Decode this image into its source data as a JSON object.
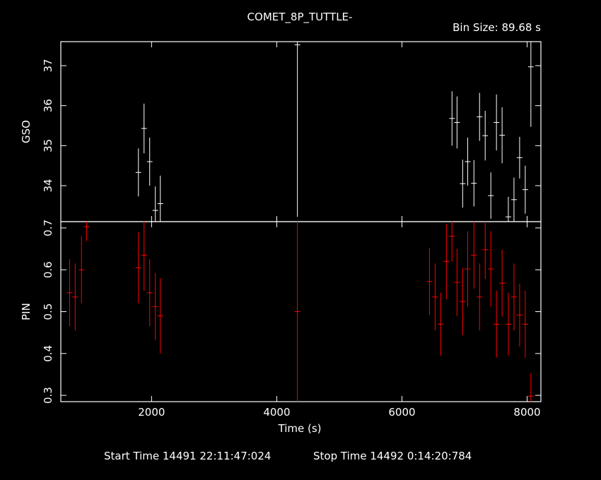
{
  "title": "COMET_8P_TUTTLE-",
  "bin_size": "Bin Size: 89.68 s",
  "start_label": "Start Time 14491 22:11:47:024",
  "stop_label": "Stop Time 14492  0:14:20:784",
  "colors": {
    "background": "#000000",
    "gso": "#ffffff",
    "pin": "#ff0000",
    "axis": "#ffffff"
  },
  "chart_data": [
    {
      "type": "scatter",
      "name": "GSO",
      "ylabel": "GSO",
      "xlabel": "",
      "xlim": [
        550,
        8220
      ],
      "ylim": [
        33.1,
        37.6
      ],
      "xticks": [
        2000,
        4000,
        6000,
        8000
      ],
      "yticks": [
        34,
        35,
        36,
        37
      ],
      "ytick_labels": [
        "34",
        "35",
        "36",
        "37"
      ],
      "x": [
        1790,
        1880,
        1970,
        2060,
        2140,
        4330,
        6800,
        6880,
        6970,
        7050,
        7150,
        7240,
        7330,
        7420,
        7510,
        7600,
        7700,
        7790,
        7880,
        7970,
        8060
      ],
      "y": [
        34.33,
        35.43,
        34.6,
        33.38,
        33.55,
        37.52,
        35.68,
        35.58,
        34.05,
        34.6,
        34.06,
        35.72,
        35.25,
        33.75,
        35.58,
        35.26,
        33.22,
        33.65,
        34.7,
        33.9,
        36.97
      ],
      "yerr": [
        0.6,
        0.62,
        0.6,
        0.6,
        0.7,
        4.3,
        0.68,
        0.65,
        0.6,
        0.6,
        0.58,
        0.6,
        0.62,
        0.58,
        0.7,
        0.7,
        0.5,
        0.55,
        0.52,
        0.6,
        1.5
      ],
      "xerr": 45,
      "color": "#ffffff"
    },
    {
      "type": "scatter",
      "name": "PIN",
      "ylabel": "PIN",
      "xlabel": "Time (s)",
      "xlim": [
        550,
        8220
      ],
      "ylim": [
        0.285,
        0.715
      ],
      "xticks": [
        2000,
        4000,
        6000,
        8000
      ],
      "xtick_labels": [
        "2000",
        "4000",
        "6000",
        "8000"
      ],
      "yticks": [
        0.3,
        0.4,
        0.5,
        0.6,
        0.7
      ],
      "ytick_labels": [
        "0.3",
        "0.4",
        "0.5",
        "0.6",
        "0.7"
      ],
      "x": [
        690,
        780,
        880,
        960,
        1790,
        1880,
        1970,
        2060,
        2140,
        4330,
        6440,
        6530,
        6620,
        6710,
        6800,
        6880,
        6970,
        7050,
        7150,
        7240,
        7330,
        7420,
        7510,
        7600,
        7700,
        7790,
        7880,
        7970,
        8060
      ],
      "y": [
        0.545,
        0.535,
        0.6,
        0.703,
        0.605,
        0.635,
        0.545,
        0.512,
        0.49,
        0.5,
        0.572,
        0.535,
        0.47,
        0.62,
        0.68,
        0.57,
        0.524,
        0.602,
        0.635,
        0.535,
        0.648,
        0.602,
        0.47,
        0.568,
        0.47,
        0.535,
        0.492,
        0.47,
        0.298
      ],
      "yerr": [
        0.08,
        0.08,
        0.08,
        0.035,
        0.085,
        0.085,
        0.08,
        0.08,
        0.09,
        0.215,
        0.08,
        0.08,
        0.075,
        0.09,
        0.06,
        0.08,
        0.08,
        0.09,
        0.08,
        0.08,
        0.07,
        0.09,
        0.08,
        0.08,
        0.075,
        0.08,
        0.075,
        0.08,
        0.055
      ],
      "xerr": 45,
      "color": "#ff0000"
    }
  ]
}
